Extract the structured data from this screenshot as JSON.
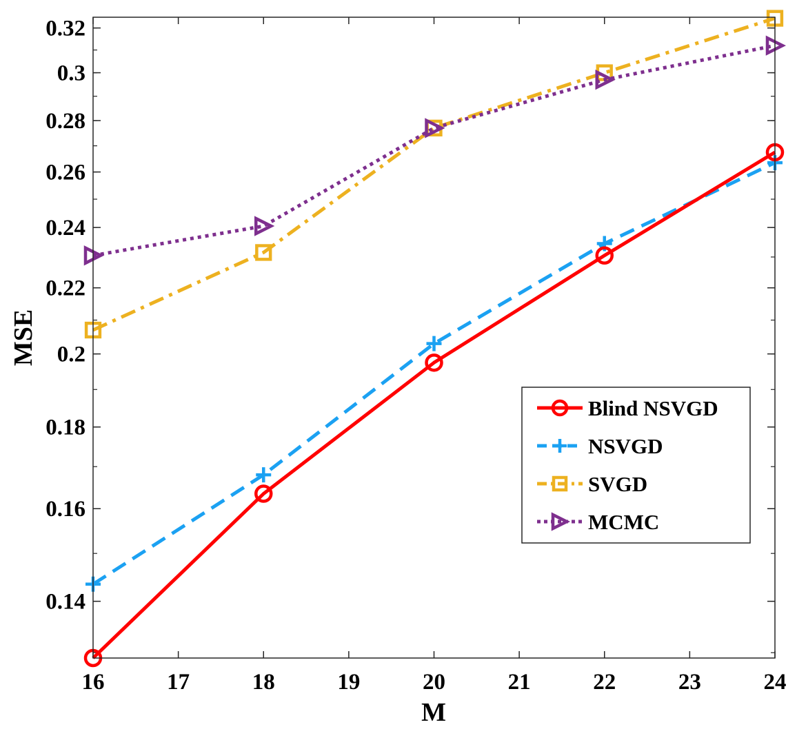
{
  "chart_data": {
    "type": "line",
    "title": "",
    "xlabel": "M",
    "ylabel": "MSE",
    "y_scale": "log",
    "xlim": [
      16,
      24
    ],
    "ylim": [
      0.129,
      0.325
    ],
    "x_ticks": [
      16,
      17,
      18,
      19,
      20,
      21,
      22,
      23,
      24
    ],
    "x_tick_labels": [
      "16",
      "17",
      "18",
      "19",
      "20",
      "21",
      "22",
      "23",
      "24"
    ],
    "y_ticks": [
      0.14,
      0.16,
      0.18,
      0.2,
      0.22,
      0.24,
      0.26,
      0.28,
      0.3,
      0.32
    ],
    "y_tick_labels": [
      "0.14",
      "0.16",
      "0.18",
      "0.2",
      "0.22",
      "0.24",
      "0.26",
      "0.28",
      "0.3",
      "0.32"
    ],
    "x": [
      16,
      18,
      20,
      22,
      24
    ],
    "legend_position": "center-right",
    "grid": false,
    "series": [
      {
        "name": "Blind NSVGD",
        "values": [
          0.129,
          0.1635,
          0.1975,
          0.2305,
          0.2675
        ],
        "color": "#ff0000",
        "marker": "circle",
        "line_style": "solid"
      },
      {
        "name": "NSVGD",
        "values": [
          0.1435,
          0.168,
          0.203,
          0.2345,
          0.2635
        ],
        "color": "#1ba1f2",
        "marker": "plus",
        "line_style": "dashed"
      },
      {
        "name": "SVGD",
        "values": [
          0.207,
          0.2315,
          0.277,
          0.3,
          0.3245
        ],
        "color": "#edb120",
        "marker": "square",
        "line_style": "dashdot"
      },
      {
        "name": "MCMC",
        "values": [
          0.2305,
          0.2405,
          0.277,
          0.297,
          0.312
        ],
        "color": "#7e2f8e",
        "marker": "triangle-right",
        "line_style": "dotted"
      }
    ]
  }
}
